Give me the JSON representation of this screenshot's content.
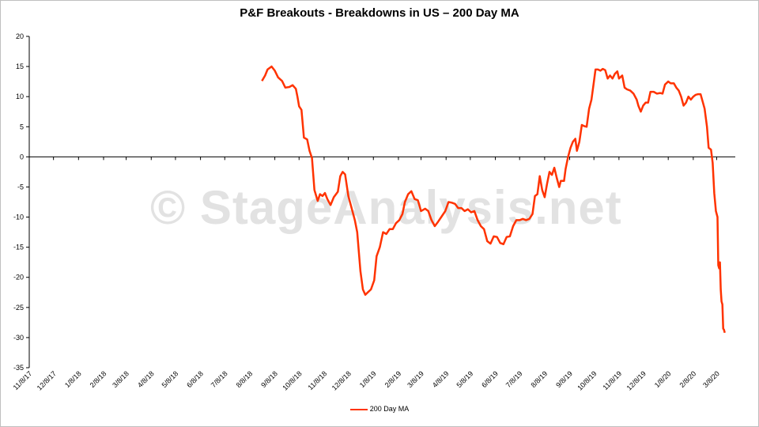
{
  "chart_data": {
    "type": "line",
    "title": "P&F Breakouts - Breakdowns in US – 200 Day MA",
    "watermark": "© StageAnalysis.net",
    "colors": {
      "series": "#ff3300",
      "axis": "#000000",
      "frame": "#bfbfbf"
    },
    "grid": false,
    "legend_position": "bottom",
    "ylim": [
      -35,
      20
    ],
    "y_ticks": [
      "20",
      "15",
      "10",
      "5",
      "0",
      "-5",
      "-10",
      "-15",
      "-20",
      "-25",
      "-30",
      "-35"
    ],
    "x_ticks": [
      "11/8/17",
      "12/8/17",
      "1/8/18",
      "2/8/18",
      "3/8/18",
      "4/8/18",
      "5/8/18",
      "6/8/18",
      "7/8/18",
      "8/8/18",
      "9/8/18",
      "10/8/18",
      "11/8/18",
      "12/8/18",
      "1/8/19",
      "2/8/19",
      "3/8/19",
      "4/8/19",
      "5/8/19",
      "6/8/19",
      "7/8/19",
      "8/8/19",
      "9/8/19",
      "10/8/19",
      "11/8/19",
      "12/8/19",
      "1/8/20",
      "2/8/20",
      "3/8/20"
    ],
    "series": [
      {
        "name": "200 Day MA",
        "points": [
          [
            "8/23/18",
            12.6
          ],
          [
            "8/27/18",
            13.5
          ],
          [
            "8/30/18",
            14.5
          ],
          [
            "9/4/18",
            15.0
          ],
          [
            "9/8/18",
            14.3
          ],
          [
            "9/12/18",
            13.2
          ],
          [
            "9/17/18",
            12.6
          ],
          [
            "9/21/18",
            11.5
          ],
          [
            "9/26/18",
            11.6
          ],
          [
            "9/30/18",
            11.9
          ],
          [
            "10/4/18",
            11.3
          ],
          [
            "10/6/18",
            10.0
          ],
          [
            "10/8/18",
            8.4
          ],
          [
            "10/11/18",
            7.8
          ],
          [
            "10/14/18",
            3.2
          ],
          [
            "10/18/18",
            2.9
          ],
          [
            "10/21/18",
            1.0
          ],
          [
            "10/24/18",
            -0.2
          ],
          [
            "10/27/18",
            -5.5
          ],
          [
            "10/31/18",
            -7.3
          ],
          [
            "11/3/18",
            -6.2
          ],
          [
            "11/6/18",
            -6.5
          ],
          [
            "11/9/18",
            -6.0
          ],
          [
            "11/12/18",
            -7.0
          ],
          [
            "11/16/18",
            -8.0
          ],
          [
            "11/20/18",
            -6.7
          ],
          [
            "11/25/18",
            -5.8
          ],
          [
            "11/28/18",
            -3.2
          ],
          [
            "12/1/18",
            -2.5
          ],
          [
            "12/4/18",
            -2.9
          ],
          [
            "12/8/18",
            -6.5
          ],
          [
            "12/12/18",
            -8.5
          ],
          [
            "12/16/18",
            -10.5
          ],
          [
            "12/19/18",
            -12.5
          ],
          [
            "12/23/18",
            -19.0
          ],
          [
            "12/26/18",
            -22.0
          ],
          [
            "12/29/18",
            -22.9
          ],
          [
            "1/1/19",
            -22.5
          ],
          [
            "1/5/19",
            -22.0
          ],
          [
            "1/9/19",
            -20.5
          ],
          [
            "1/12/19",
            -16.5
          ],
          [
            "1/16/19",
            -15.0
          ],
          [
            "1/20/19",
            -12.5
          ],
          [
            "1/24/19",
            -12.8
          ],
          [
            "1/28/19",
            -12.0
          ],
          [
            "2/1/19",
            -12.0
          ],
          [
            "2/5/19",
            -11.0
          ],
          [
            "2/9/19",
            -10.5
          ],
          [
            "2/13/19",
            -9.5
          ],
          [
            "2/16/19",
            -7.5
          ],
          [
            "2/20/19",
            -6.2
          ],
          [
            "2/24/19",
            -5.7
          ],
          [
            "2/28/19",
            -7.0
          ],
          [
            "3/4/19",
            -7.2
          ],
          [
            "3/8/19",
            -9.0
          ],
          [
            "3/13/19",
            -8.6
          ],
          [
            "3/17/19",
            -9.0
          ],
          [
            "3/21/19",
            -10.5
          ],
          [
            "3/25/19",
            -11.5
          ],
          [
            "3/29/19",
            -10.8
          ],
          [
            "4/3/19",
            -9.8
          ],
          [
            "4/7/19",
            -9.0
          ],
          [
            "4/11/19",
            -7.5
          ],
          [
            "4/15/19",
            -7.6
          ],
          [
            "4/19/19",
            -7.8
          ],
          [
            "4/23/19",
            -8.5
          ],
          [
            "4/27/19",
            -8.5
          ],
          [
            "5/1/19",
            -9.0
          ],
          [
            "5/5/19",
            -8.7
          ],
          [
            "5/9/19",
            -9.2
          ],
          [
            "5/13/19",
            -9.0
          ],
          [
            "5/17/19",
            -10.5
          ],
          [
            "5/21/19",
            -11.5
          ],
          [
            "5/25/19",
            -12.0
          ],
          [
            "5/29/19",
            -14.0
          ],
          [
            "6/2/19",
            -14.4
          ],
          [
            "6/6/19",
            -13.2
          ],
          [
            "6/10/19",
            -13.3
          ],
          [
            "6/14/19",
            -14.3
          ],
          [
            "6/18/19",
            -14.5
          ],
          [
            "6/22/19",
            -13.3
          ],
          [
            "6/26/19",
            -13.2
          ],
          [
            "6/30/19",
            -11.5
          ],
          [
            "7/4/19",
            -10.5
          ],
          [
            "7/8/19",
            -10.5
          ],
          [
            "7/12/19",
            -10.3
          ],
          [
            "7/16/19",
            -10.5
          ],
          [
            "7/20/19",
            -10.3
          ],
          [
            "7/24/19",
            -9.5
          ],
          [
            "7/27/19",
            -6.5
          ],
          [
            "7/30/19",
            -6.2
          ],
          [
            "8/2/19",
            -3.2
          ],
          [
            "8/5/19",
            -5.5
          ],
          [
            "8/8/19",
            -6.7
          ],
          [
            "8/11/19",
            -4.5
          ],
          [
            "8/14/19",
            -2.5
          ],
          [
            "8/17/19",
            -3.0
          ],
          [
            "8/20/19",
            -1.8
          ],
          [
            "8/23/19",
            -3.5
          ],
          [
            "8/26/19",
            -5.0
          ],
          [
            "8/28/19",
            -4.0
          ],
          [
            "9/1/19",
            -4.0
          ],
          [
            "9/3/19",
            -2.0
          ],
          [
            "9/6/19",
            0.0
          ],
          [
            "9/9/19",
            1.5
          ],
          [
            "9/12/19",
            2.5
          ],
          [
            "9/15/19",
            3.0
          ],
          [
            "9/17/19",
            1.0
          ],
          [
            "9/20/19",
            2.5
          ],
          [
            "9/23/19",
            5.3
          ],
          [
            "9/26/19",
            5.1
          ],
          [
            "9/29/19",
            5.0
          ],
          [
            "10/2/19",
            8.0
          ],
          [
            "10/5/19",
            9.5
          ],
          [
            "10/8/19",
            12.5
          ],
          [
            "10/10/19",
            14.5
          ],
          [
            "10/13/19",
            14.5
          ],
          [
            "10/16/19",
            14.3
          ],
          [
            "10/19/19",
            14.6
          ],
          [
            "10/22/19",
            14.4
          ],
          [
            "10/25/19",
            13.0
          ],
          [
            "10/28/19",
            13.5
          ],
          [
            "10/31/19",
            13.0
          ],
          [
            "11/3/19",
            13.8
          ],
          [
            "11/6/19",
            14.2
          ],
          [
            "11/8/19",
            13.0
          ],
          [
            "11/12/19",
            13.5
          ],
          [
            "11/15/19",
            11.5
          ],
          [
            "11/18/19",
            11.2
          ],
          [
            "11/22/19",
            11.0
          ],
          [
            "11/26/19",
            10.5
          ],
          [
            "11/30/19",
            9.5
          ],
          [
            "12/2/19",
            8.5
          ],
          [
            "12/5/19",
            7.5
          ],
          [
            "12/8/19",
            8.5
          ],
          [
            "12/11/19",
            9.0
          ],
          [
            "12/14/19",
            9.0
          ],
          [
            "12/17/19",
            10.8
          ],
          [
            "12/21/19",
            10.8
          ],
          [
            "12/25/19",
            10.5
          ],
          [
            "12/29/19",
            10.6
          ],
          [
            "1/1/20",
            10.5
          ],
          [
            "1/4/20",
            12.0
          ],
          [
            "1/8/20",
            12.5
          ],
          [
            "1/11/20",
            12.2
          ],
          [
            "1/15/20",
            12.2
          ],
          [
            "1/18/20",
            11.5
          ],
          [
            "1/21/20",
            11.0
          ],
          [
            "1/24/20",
            10.0
          ],
          [
            "1/27/20",
            8.5
          ],
          [
            "1/30/20",
            9.0
          ],
          [
            "2/2/20",
            10.0
          ],
          [
            "2/5/20",
            9.5
          ],
          [
            "2/8/20",
            10.0
          ],
          [
            "2/11/20",
            10.3
          ],
          [
            "2/14/20",
            10.4
          ],
          [
            "2/17/20",
            10.4
          ],
          [
            "2/20/20",
            9.0
          ],
          [
            "2/22/20",
            8.0
          ],
          [
            "2/25/20",
            5.0
          ],
          [
            "2/27/20",
            1.5
          ],
          [
            "3/1/20",
            1.2
          ],
          [
            "3/3/20",
            -1.0
          ],
          [
            "3/5/20",
            -6.0
          ],
          [
            "3/7/20",
            -9.0
          ],
          [
            "3/9/20",
            -10.0
          ],
          [
            "3/10/20",
            -18.0
          ],
          [
            "3/11/20",
            -18.5
          ],
          [
            "3/12/20",
            -17.5
          ],
          [
            "3/13/20",
            -22.0
          ],
          [
            "3/14/20",
            -24.0
          ],
          [
            "3/15/20",
            -24.5
          ],
          [
            "3/16/20",
            -28.5
          ],
          [
            "3/17/20",
            -28.7
          ],
          [
            "3/18/20",
            -29.2
          ]
        ]
      }
    ]
  }
}
